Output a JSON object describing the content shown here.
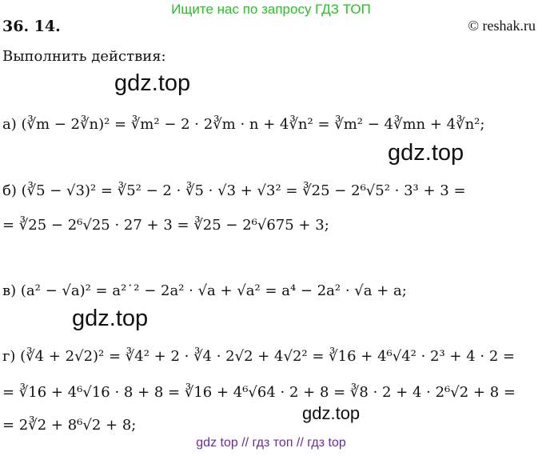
{
  "header": {
    "banner": "Ищите нас по запросу ГДЗ ТОП",
    "number": "36. 14.",
    "site": "© reshak.ru"
  },
  "task": "Выполнить действия:",
  "watermarks": [
    "gdz.top",
    "gdz.top",
    "gdz.top",
    "gdz.top"
  ],
  "lines": [
    "а) (∛m − 2∛n)² = ∛m² − 2 · 2∛m · n + 4∛n² = ∛m² − 4∛mn + 4∛n²;",
    "б) (∛5 − √3)² = ∛5² − 2 · ∛5 · √3 + √3² = ∛25 − 2⁶√5² · 3³ + 3 =",
    "= ∛25 − 2⁶√25 · 27 + 3 = ∛25 − 2⁶√675 + 3;",
    "в) (a² − √a)² = a²˙² − 2a² · √a + √a² = a⁴ − 2a² · √a + a;",
    "г) (∛4 + 2√2)² = ∛4² + 2 · ∛4 · 2√2 + 4√2² = ∛16 + 4⁶√4² · 2³ + 4 · 2 =",
    "= ∛16 + 4⁶√16 · 8 + 8 = ∛16 + 4⁶√64 · 2 + 8 = ∛8 · 2 + 4 · 2⁶√2 + 8 =",
    "= 2∛2 + 8⁶√2 + 8;"
  ],
  "footer": "gdz top  //  гдз топ  //  гдз top"
}
